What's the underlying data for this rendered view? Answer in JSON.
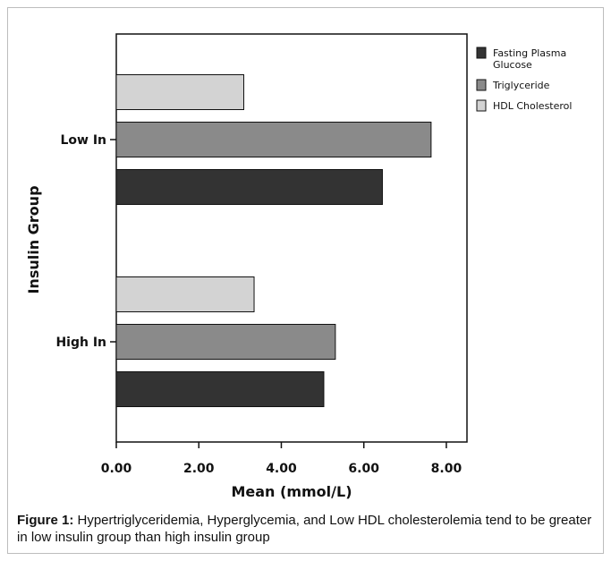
{
  "chart_data": {
    "type": "bar",
    "orientation": "horizontal",
    "categories": [
      "High In",
      "Low In"
    ],
    "series": [
      {
        "name": "Fasting Plasma Glucose",
        "color": "#333333",
        "values": [
          5.03,
          6.45
        ]
      },
      {
        "name": "Triglyceride",
        "color": "#8a8a8a",
        "values": [
          5.31,
          7.63
        ]
      },
      {
        "name": "HDL Cholesterol",
        "color": "#d3d3d3",
        "values": [
          3.34,
          3.09
        ]
      }
    ],
    "xlabel": "Mean (mmol/L)",
    "ylabel": "Insulin Group",
    "xlim": [
      0,
      8.5
    ],
    "xticks": [
      0,
      2,
      4,
      6,
      8
    ],
    "xtick_labels": [
      "0.00",
      "2.00",
      "4.00",
      "6.00",
      "8.00"
    ],
    "legend_position": "right",
    "legend": [
      "Fasting Plasma Glucose",
      "Triglyceride",
      "HDL Cholesterol"
    ],
    "grid": false
  },
  "caption": {
    "label": "Figure 1:",
    "text": " Hypertriglyceridemia, Hyperglycemia, and Low HDL cholesterolemia tend to be greater in low insulin group than high insulin group"
  }
}
